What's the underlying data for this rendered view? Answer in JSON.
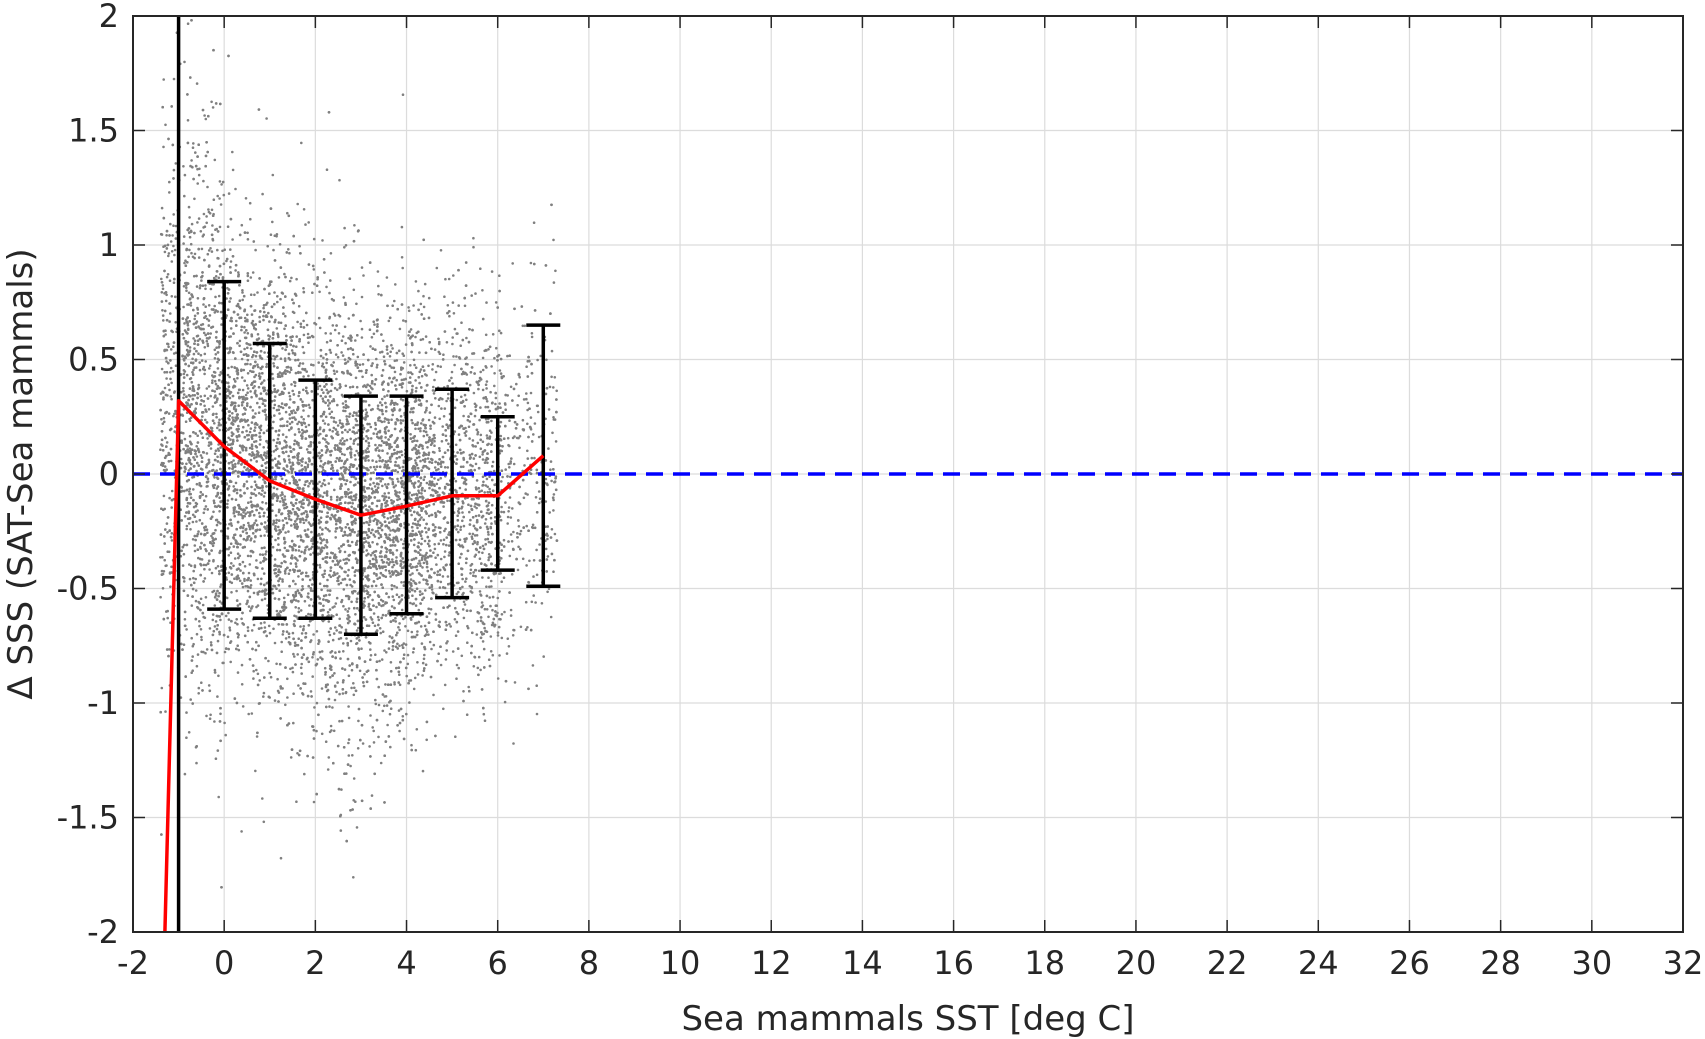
{
  "chart_data": {
    "type": "scatter",
    "title": "",
    "xlabel": "Sea mammals SST [deg C]",
    "ylabel": "Δ SSS (SAT-Sea mammals)",
    "xlim": [
      -2,
      32
    ],
    "ylim": [
      -2,
      2
    ],
    "xticks": [
      -2,
      0,
      2,
      4,
      6,
      8,
      10,
      12,
      14,
      16,
      18,
      20,
      22,
      24,
      26,
      28,
      30,
      32
    ],
    "yticks": [
      -2,
      -1.5,
      -1,
      -0.5,
      0,
      0.5,
      1,
      1.5,
      2
    ],
    "xtick_labels": [
      "-2",
      "0",
      "2",
      "4",
      "6",
      "8",
      "10",
      "12",
      "14",
      "16",
      "18",
      "20",
      "22",
      "24",
      "26",
      "28",
      "30",
      "32"
    ],
    "ytick_labels": [
      "-2",
      "-1.5",
      "-1",
      "-0.5",
      "0",
      "0.5",
      "1",
      "1.5",
      "2"
    ],
    "grid": true,
    "scatter_points": {
      "color": "#808080",
      "description_of_distribution": "dense cloud of matchup differences",
      "x_range": [
        -1.4,
        7.3
      ],
      "y_range": [
        -2.0,
        2.0
      ],
      "approx_count": 9000
    },
    "mean_line": {
      "color": "#ff0000",
      "x": [
        -1.3,
        -1,
        0,
        1,
        2,
        3,
        4,
        5,
        6,
        7
      ],
      "y": [
        -2.0,
        0.32,
        0.12,
        -0.03,
        -0.11,
        -0.18,
        -0.14,
        -0.095,
        -0.095,
        0.08
      ]
    },
    "error_bars": {
      "color": "#000000",
      "x": [
        0,
        1,
        2,
        3,
        4,
        5,
        6,
        7
      ],
      "upper": [
        0.84,
        0.57,
        0.41,
        0.34,
        0.34,
        0.37,
        0.25,
        0.65
      ],
      "lower": [
        -0.59,
        -0.63,
        -0.63,
        -0.7,
        -0.61,
        -0.54,
        -0.42,
        -0.49
      ]
    },
    "reference_lines": [
      {
        "orientation": "horizontal",
        "value": 0,
        "color": "#0000ff",
        "style": "dashed"
      },
      {
        "orientation": "vertical",
        "value": -1,
        "color": "#000000",
        "style": "solid"
      }
    ]
  }
}
